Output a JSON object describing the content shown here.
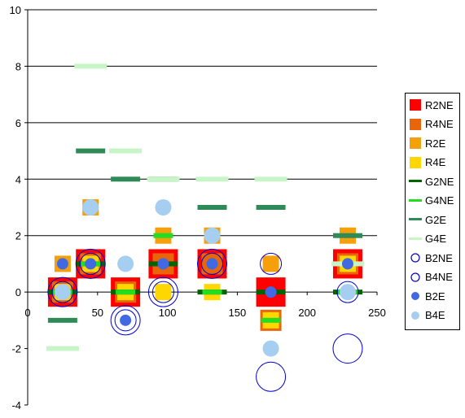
{
  "chart_data": {
    "type": "scatter",
    "title": "",
    "xlabel": "",
    "ylabel": "",
    "xlim": [
      0,
      250
    ],
    "ylim": [
      -4,
      10
    ],
    "xticks": [
      "0",
      "50",
      "100",
      "150",
      "200",
      "250"
    ],
    "yticks": [
      "-4",
      "-2",
      "0",
      "2",
      "4",
      "6",
      "8",
      "10"
    ],
    "grid": "horizontal",
    "legend_position": "right",
    "series": [
      {
        "name": "R2NE",
        "marker": "square-large",
        "color": "#ff0000",
        "points": [
          [
            25,
            0
          ],
          [
            45,
            1
          ],
          [
            70,
            0
          ],
          [
            97,
            1
          ],
          [
            132,
            1
          ],
          [
            174,
            0
          ],
          [
            229,
            1
          ]
        ]
      },
      {
        "name": "R4NE",
        "marker": "square",
        "color": "#e8650a",
        "points": [
          [
            25,
            0
          ],
          [
            45,
            1
          ],
          [
            70,
            0
          ],
          [
            97,
            1
          ],
          [
            132,
            1
          ],
          [
            174,
            -1
          ],
          [
            229,
            1
          ]
        ]
      },
      {
        "name": "R2E",
        "marker": "square-small",
        "color": "#f5a00a",
        "points": [
          [
            25,
            1
          ],
          [
            45,
            3
          ],
          [
            70,
            0
          ],
          [
            97,
            2
          ],
          [
            132,
            2
          ],
          [
            174,
            1
          ],
          [
            229,
            2
          ]
        ]
      },
      {
        "name": "R4E",
        "marker": "square-small",
        "color": "#ffd700",
        "points": [
          [
            25,
            0
          ],
          [
            45,
            1
          ],
          [
            70,
            0
          ],
          [
            97,
            0
          ],
          [
            132,
            0
          ],
          [
            174,
            -1
          ],
          [
            229,
            1
          ]
        ]
      },
      {
        "name": "G2NE",
        "marker": "dash",
        "color": "#006400",
        "points": [
          [
            25,
            0
          ],
          [
            45,
            1
          ],
          [
            70,
            0
          ],
          [
            97,
            1
          ],
          [
            132,
            0
          ],
          [
            174,
            0
          ],
          [
            229,
            0
          ]
        ]
      },
      {
        "name": "G4NE",
        "marker": "dash-small",
        "color": "#22dd22",
        "points": [
          [
            25,
            0
          ],
          [
            45,
            1
          ],
          [
            70,
            0
          ],
          [
            97,
            2
          ],
          [
            132,
            0
          ],
          [
            174,
            -1
          ],
          [
            229,
            0
          ]
        ]
      },
      {
        "name": "G2E",
        "marker": "dash",
        "color": "#2e8b57",
        "points": [
          [
            25,
            -1
          ],
          [
            45,
            5
          ],
          [
            70,
            4
          ],
          [
            97,
            4
          ],
          [
            132,
            3
          ],
          [
            174,
            3
          ],
          [
            229,
            2
          ]
        ]
      },
      {
        "name": "G4E",
        "marker": "dash-wide",
        "color": "#c8f5c8",
        "points": [
          [
            25,
            -2
          ],
          [
            45,
            8
          ],
          [
            70,
            5
          ],
          [
            97,
            4
          ],
          [
            132,
            4
          ],
          [
            174,
            4
          ],
          [
            229,
            1
          ]
        ]
      },
      {
        "name": "B2NE",
        "marker": "circle-open",
        "color": "#0000cc",
        "points": [
          [
            25,
            0
          ],
          [
            45,
            1
          ],
          [
            70,
            -1
          ],
          [
            97,
            0
          ],
          [
            132,
            1
          ],
          [
            174,
            1
          ],
          [
            229,
            0
          ]
        ]
      },
      {
        "name": "B4NE",
        "marker": "circle-open-large",
        "color": "#0000cc",
        "points": [
          [
            25,
            0
          ],
          [
            45,
            1
          ],
          [
            70,
            -1
          ],
          [
            97,
            0
          ],
          [
            132,
            1
          ],
          [
            174,
            -3
          ],
          [
            229,
            -2
          ]
        ]
      },
      {
        "name": "B2E",
        "marker": "circle-filled",
        "color": "#4169e1",
        "points": [
          [
            25,
            1
          ],
          [
            45,
            1
          ],
          [
            70,
            -1
          ],
          [
            97,
            1
          ],
          [
            132,
            1
          ],
          [
            174,
            0
          ],
          [
            229,
            1
          ]
        ]
      },
      {
        "name": "B4E",
        "marker": "circle-filled-large",
        "color": "#a6cef0",
        "points": [
          [
            25,
            0
          ],
          [
            45,
            3
          ],
          [
            70,
            1
          ],
          [
            97,
            3
          ],
          [
            132,
            2
          ],
          [
            174,
            -2
          ],
          [
            229,
            0
          ]
        ]
      }
    ]
  },
  "colors": {
    "gridline": "#000000",
    "axis": "#000000",
    "background": "#ffffff"
  }
}
